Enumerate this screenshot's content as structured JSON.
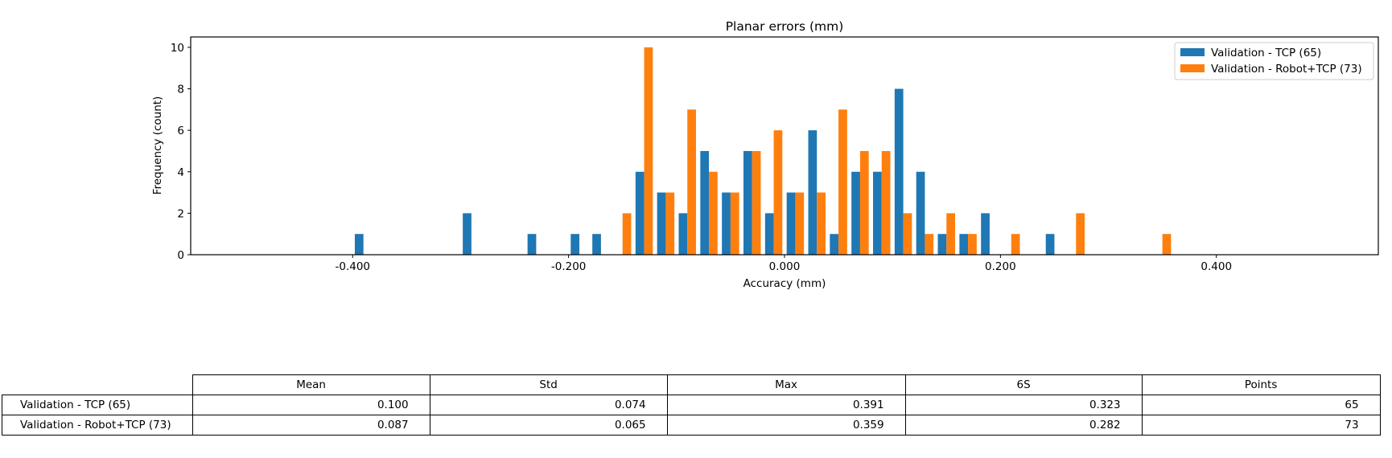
{
  "chart_data": {
    "type": "bar",
    "title": "Planar errors (mm)",
    "xlabel": "Accuracy (mm)",
    "ylabel": "Frequency (count)",
    "xlim": [
      -0.55,
      0.55
    ],
    "ylim": [
      0,
      10.5
    ],
    "xticks": [
      -0.4,
      -0.2,
      0.0,
      0.2,
      0.4
    ],
    "xtick_labels": [
      "-0.400",
      "-0.200",
      "0.000",
      "0.200",
      "0.400"
    ],
    "yticks": [
      0,
      2,
      4,
      6,
      8,
      10
    ],
    "ytick_labels": [
      "0",
      "2",
      "4",
      "6",
      "8",
      "10"
    ],
    "grid": false,
    "legend_position": "top-right",
    "bin_width": 0.02,
    "bin_centers": [
      -0.39,
      -0.37,
      -0.35,
      -0.33,
      -0.31,
      -0.29,
      -0.27,
      -0.25,
      -0.23,
      -0.21,
      -0.19,
      -0.17,
      -0.15,
      -0.13,
      -0.11,
      -0.09,
      -0.07,
      -0.05,
      -0.03,
      -0.01,
      0.01,
      0.03,
      0.05,
      0.07,
      0.09,
      0.11,
      0.13,
      0.15,
      0.17,
      0.19,
      0.21,
      0.23,
      0.25,
      0.27,
      0.29,
      0.31,
      0.33,
      0.35
    ],
    "series": [
      {
        "name": "Validation - TCP (65)",
        "color": "#1f77b4",
        "values": [
          1,
          0,
          0,
          0,
          0,
          2,
          0,
          0,
          1,
          0,
          1,
          1,
          0,
          4,
          3,
          2,
          5,
          3,
          5,
          2,
          3,
          6,
          1,
          4,
          4,
          8,
          4,
          1,
          1,
          2,
          0,
          0,
          1,
          0,
          0,
          0,
          0,
          0
        ]
      },
      {
        "name": "Validation - Robot+TCP (73)",
        "color": "#ff7f0e",
        "values": [
          0,
          0,
          0,
          0,
          0,
          0,
          0,
          0,
          0,
          0,
          0,
          0,
          2,
          10,
          3,
          7,
          4,
          3,
          5,
          6,
          3,
          3,
          7,
          5,
          5,
          2,
          1,
          2,
          1,
          0,
          1,
          0,
          0,
          2,
          0,
          0,
          0,
          1
        ]
      }
    ]
  },
  "table": {
    "columns": [
      "Mean",
      "Std",
      "Max",
      "6S",
      "Points"
    ],
    "rows": [
      {
        "label": "Validation - TCP (65)",
        "cells": [
          "0.100",
          "0.074",
          "0.391",
          "0.323",
          "65"
        ]
      },
      {
        "label": "Validation - Robot+TCP (73)",
        "cells": [
          "0.087",
          "0.065",
          "0.359",
          "0.282",
          "73"
        ]
      }
    ]
  }
}
